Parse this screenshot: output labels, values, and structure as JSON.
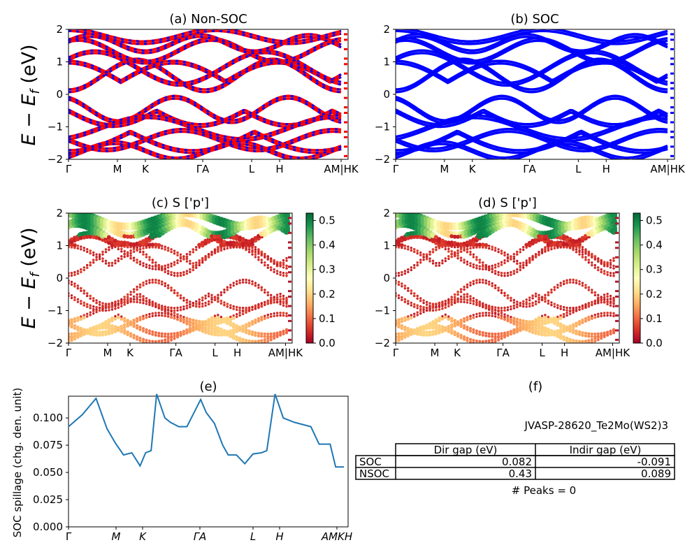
{
  "panels": {
    "a": {
      "title": "(a) Non-SOC"
    },
    "b": {
      "title": "(b) SOC"
    },
    "c": {
      "title": "(c)  S ['p']"
    },
    "d": {
      "title": "(d) S ['p']"
    },
    "e": {
      "title": "(e)"
    },
    "f": {
      "title": "(f)"
    }
  },
  "band_axis": {
    "ylabel": "E − E_f (eV)",
    "ylabel_main": "E − E",
    "ylabel_sub": "f",
    "ylabel_tail": " (eV)",
    "ylim": [
      -2,
      2
    ],
    "yticks": [
      "2",
      "1",
      "0",
      "−1",
      "−2"
    ],
    "kpath": [
      "Γ",
      "M",
      "K",
      "Γ",
      "A",
      "L",
      "H",
      "A",
      "M",
      "H",
      "K"
    ],
    "kpath_ab_labels": [
      "Γ",
      "M",
      "K",
      "ΓA",
      "L",
      "H",
      "AM|HK"
    ],
    "kpath_cd_labels": [
      "Γ",
      "M",
      "K",
      "ΓA",
      "L",
      "H",
      "AM|HK"
    ]
  },
  "colorbar": {
    "ticks": [
      "0.5",
      "0.4",
      "0.3",
      "0.2",
      "0.1",
      "0.0"
    ],
    "range": [
      0.0,
      0.53
    ],
    "colormap": "RdYlGn"
  },
  "colors": {
    "nonsoc_band": "#ff0000",
    "nonsoc_dash": "#0000ff",
    "soc_band": "#0000ff",
    "spillage_line": "#1f77b4"
  },
  "spillage": {
    "ylabel": "SOC spillage (chg. den. unit)",
    "yticks": [
      "0.100",
      "0.075",
      "0.050",
      "0.025",
      "0.000"
    ],
    "xticks": [
      "Γ",
      "M",
      "K",
      "ΓA",
      "L",
      "H",
      "AMKH"
    ]
  },
  "info": {
    "material": "JVASP-28620_Te2Mo(WS2)3",
    "table": {
      "headers": [
        "Dir gap (eV)",
        "Indir gap (eV)"
      ],
      "rows": [
        {
          "label": "SOC",
          "dir": "0.082",
          "indir": "-0.091"
        },
        {
          "label": "NSOC",
          "dir": "0.43",
          "indir": "0.089"
        }
      ]
    },
    "peaks": "# Peaks = 0"
  },
  "chart_data": [
    {
      "type": "line",
      "title": "(a) Non-SOC",
      "ylabel": "E − E_f (eV)",
      "ylim": [
        -2,
        2
      ],
      "x_ticks": [
        "Γ",
        "M",
        "K",
        "Γ",
        "A",
        "L",
        "H",
        "A",
        "M",
        "H",
        "K"
      ],
      "notes": "band structure, red solid with blue dashed overlay"
    },
    {
      "type": "line",
      "title": "(b) SOC",
      "ylim": [
        -2,
        2
      ],
      "x_ticks": [
        "Γ",
        "M",
        "K",
        "Γ",
        "A",
        "L",
        "H",
        "A",
        "M",
        "H",
        "K"
      ]
    },
    {
      "type": "scatter",
      "title": "(c)  S ['p']",
      "ylim": [
        -2,
        2
      ],
      "colorbar_range": [
        0.0,
        0.53
      ]
    },
    {
      "type": "scatter",
      "title": "(d) S ['p']",
      "ylim": [
        -2,
        2
      ],
      "colorbar_range": [
        0.0,
        0.53
      ]
    },
    {
      "type": "line",
      "title": "(e)",
      "ylabel": "SOC spillage (chg. den. unit)",
      "ylim": [
        0.0,
        0.12
      ],
      "x_ticks": [
        "Γ",
        "M",
        "K",
        "Γ",
        "A",
        "L",
        "H",
        "A",
        "M",
        "K",
        "H"
      ],
      "series": [
        {
          "x": [
            0,
            0.05,
            0.1,
            0.14,
            0.17,
            0.2,
            0.23,
            0.26,
            0.28,
            0.3,
            0.32,
            0.35,
            0.37,
            0.4,
            0.43,
            0.46,
            0.48,
            0.5,
            0.53,
            0.56,
            0.58,
            0.61,
            0.64,
            0.67,
            0.7,
            0.72,
            0.75,
            0.78,
            0.82,
            0.85,
            0.88,
            0.91,
            0.95,
            0.97,
            1.0
          ],
          "values": [
            0.092,
            0.103,
            0.118,
            0.09,
            0.077,
            0.066,
            0.068,
            0.056,
            0.068,
            0.07,
            0.122,
            0.1,
            0.096,
            0.092,
            0.092,
            0.107,
            0.117,
            0.105,
            0.095,
            0.075,
            0.066,
            0.066,
            0.058,
            0.067,
            0.068,
            0.07,
            0.122,
            0.1,
            0.096,
            0.094,
            0.092,
            0.076,
            0.076,
            0.055,
            0.055
          ]
        }
      ]
    }
  ]
}
